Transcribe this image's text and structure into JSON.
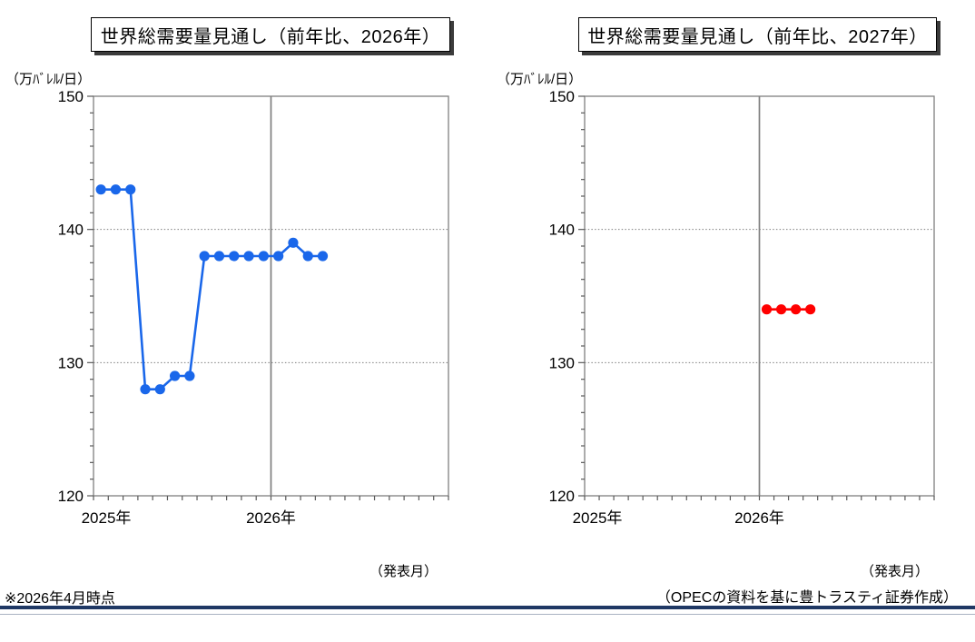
{
  "footer": {
    "note": "※2026年4月時点",
    "source": "（OPECの資料を基に豊トラスティ証券作成）"
  },
  "colors": {
    "series_2026": "#1A67EA",
    "series_2027": "#FF0000",
    "rule": "#1F3864",
    "plot_border": "#7F7F7F",
    "tick": "#595959"
  },
  "chart_data": [
    {
      "type": "line",
      "title": "世界総需要量見通し（前年比、2026年）",
      "unit_label": "（万ﾊﾞﾚﾙ/日）",
      "xaxis_caption": "（発表月）",
      "ylim": [
        120,
        150
      ],
      "y_major_ticks": [
        120,
        130,
        140,
        150
      ],
      "y_minor_interval": 1.25,
      "grid_dotted_at": [
        130,
        140
      ],
      "x_axis": {
        "categories_months": 24,
        "year_labels": [
          "2025年",
          "2026年"
        ],
        "year_divider_after_month": 12
      },
      "series": [
        {
          "color": "#1A67EA",
          "start_index": 0,
          "months": [
            "2025-01",
            "2025-02",
            "2025-03",
            "2025-04",
            "2025-05",
            "2025-06",
            "2025-07",
            "2025-08",
            "2025-09",
            "2025-10",
            "2025-11",
            "2025-12",
            "2026-01",
            "2026-02",
            "2026-03",
            "2026-04"
          ],
          "values": [
            143,
            143,
            143,
            128,
            128,
            129,
            129,
            138,
            138,
            138,
            138,
            138,
            138,
            139,
            138,
            138
          ]
        }
      ]
    },
    {
      "type": "line",
      "title": "世界総需要量見通し（前年比、2027年）",
      "unit_label": "（万ﾊﾞﾚﾙ/日）",
      "xaxis_caption": "（発表月）",
      "ylim": [
        120,
        150
      ],
      "y_major_ticks": [
        120,
        130,
        140,
        150
      ],
      "y_minor_interval": 1.25,
      "grid_dotted_at": [
        130,
        140
      ],
      "x_axis": {
        "categories_months": 24,
        "year_labels": [
          "2025年",
          "2026年"
        ],
        "year_divider_after_month": 12
      },
      "series": [
        {
          "color": "#FF0000",
          "start_index": 12,
          "months": [
            "2026-01",
            "2026-02",
            "2026-03",
            "2026-04"
          ],
          "values": [
            134,
            134,
            134,
            134
          ]
        }
      ]
    }
  ]
}
